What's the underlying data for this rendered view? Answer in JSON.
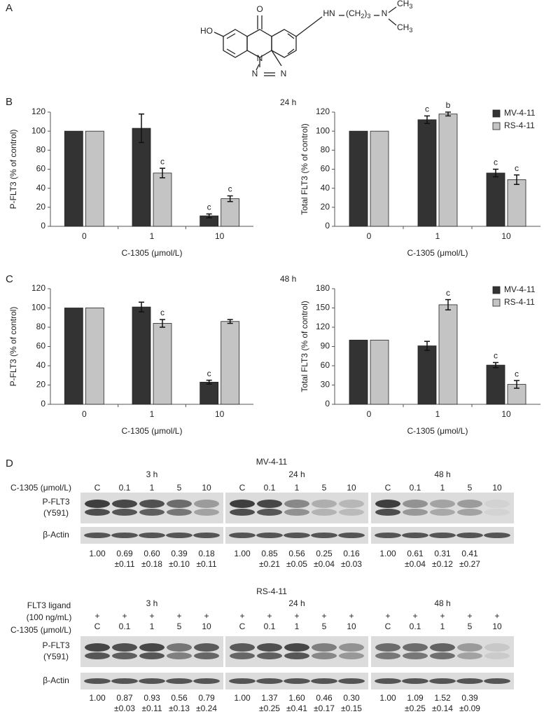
{
  "panels": [
    "A",
    "B",
    "C",
    "D"
  ],
  "structure": {
    "oxo": "O",
    "hydroxy": "HO",
    "amino": "HN",
    "chain": [
      "(CH",
      "2",
      ")",
      "3"
    ],
    "dimethylamino": "N",
    "methyl_top": [
      "CH",
      "3"
    ],
    "methyl_bottom": [
      "CH",
      "3"
    ],
    "triazole": [
      "N",
      "N",
      "N",
      "N"
    ]
  },
  "chart_data": [
    {
      "type": "bar",
      "ylabel": "P-FLT3 (% of control)",
      "xlabel": "C-1305 (μmol/L)",
      "categories": [
        "0",
        "1",
        "10"
      ],
      "ylim": [
        0,
        120
      ],
      "yticks": [
        0,
        20,
        40,
        60,
        80,
        100,
        120
      ],
      "series": [
        {
          "color": "#333333",
          "values": [
            100,
            103,
            11
          ],
          "errors": [
            0,
            15,
            2
          ],
          "labels": [
            null,
            null,
            "c"
          ]
        },
        {
          "color": "#c4c4c4",
          "values": [
            100,
            56,
            29
          ],
          "errors": [
            0,
            5,
            3
          ],
          "labels": [
            null,
            "c",
            "c"
          ]
        }
      ]
    },
    {
      "type": "bar",
      "title": "24 h",
      "ylabel": "Total FLT3 (% of control)",
      "xlabel": "C-1305 (μmol/L)",
      "categories": [
        "0",
        "1",
        "10"
      ],
      "ylim": [
        0,
        120
      ],
      "yticks": [
        0,
        20,
        40,
        60,
        80,
        100,
        120
      ],
      "legend": "upper right",
      "series": [
        {
          "name": "MV-4-11",
          "color": "#333333",
          "values": [
            100,
            112,
            56
          ],
          "errors": [
            0,
            4,
            4
          ],
          "labels": [
            null,
            "c",
            "c"
          ]
        },
        {
          "name": "RS-4-11",
          "color": "#c4c4c4",
          "values": [
            100,
            118,
            49
          ],
          "errors": [
            0,
            2,
            5
          ],
          "labels": [
            null,
            "b",
            "c"
          ]
        }
      ]
    },
    {
      "type": "bar",
      "ylabel": "P-FLT3 (% of control)",
      "xlabel": "C-1305 (μmol/L)",
      "categories": [
        "0",
        "1",
        "10"
      ],
      "ylim": [
        0,
        120
      ],
      "yticks": [
        0,
        20,
        40,
        60,
        80,
        100,
        120
      ],
      "series": [
        {
          "color": "#333333",
          "values": [
            100,
            101,
            23
          ],
          "errors": [
            0,
            5,
            2
          ],
          "labels": [
            null,
            null,
            "c"
          ]
        },
        {
          "color": "#c4c4c4",
          "values": [
            100,
            84,
            86
          ],
          "errors": [
            0,
            4,
            2
          ],
          "labels": [
            null,
            "c",
            null
          ]
        }
      ]
    },
    {
      "type": "bar",
      "title": "48 h",
      "ylabel": "Total FLT3 (% of control)",
      "xlabel": "C-1305 (μmol/L)",
      "categories": [
        "0",
        "1",
        "10"
      ],
      "ylim": [
        0,
        180
      ],
      "yticks": [
        0,
        30,
        60,
        90,
        120,
        150,
        180
      ],
      "legend": "upper right",
      "series": [
        {
          "name": "MV-4-11",
          "color": "#333333",
          "values": [
            100,
            91,
            61
          ],
          "errors": [
            0,
            7,
            4
          ],
          "labels": [
            null,
            null,
            "c"
          ]
        },
        {
          "name": "RS-4-11",
          "color": "#c4c4c4",
          "values": [
            100,
            155,
            31
          ],
          "errors": [
            0,
            8,
            6
          ],
          "labels": [
            null,
            "c",
            "c"
          ]
        }
      ]
    }
  ],
  "blots": [
    {
      "cell_line": "MV-4-11",
      "treatment_label": "C-1305 (μmol/L)",
      "target_label": [
        "P-FLT3",
        "(Y591)"
      ],
      "loading_label": "β-Actin",
      "groups": [
        {
          "time": "3 h",
          "lanes": [
            "C",
            "0.1",
            "1",
            "5",
            "10"
          ],
          "means": [
            "1.00",
            "0.69",
            "0.60",
            "0.39",
            "0.18"
          ],
          "sds": [
            null,
            "±0.11",
            "±0.18",
            "±0.10",
            "±0.11"
          ]
        },
        {
          "time": "24 h",
          "lanes": [
            "C",
            "0.1",
            "1",
            "5",
            "10"
          ],
          "means": [
            "1.00",
            "0.85",
            "0.56",
            "0.25",
            "0.16"
          ],
          "sds": [
            null,
            "±0.21",
            "±0.05",
            "±0.04",
            "±0.03"
          ]
        },
        {
          "time": "48 h",
          "lanes": [
            "C",
            "0.1",
            "1",
            "5",
            "10"
          ],
          "means": [
            "1.00",
            "0.61",
            "0.31",
            "0.41"
          ],
          "sds": [
            null,
            "±0.04",
            "±0.12",
            "±0.27"
          ]
        }
      ]
    },
    {
      "cell_line": "RS-4-11",
      "ligand_label": [
        "FLT3 ligand",
        "(100 ng/mL)"
      ],
      "treatment_label": "C-1305 (μmol/L)",
      "target_label": [
        "P-FLT3",
        "(Y591)"
      ],
      "loading_label": "β-Actin",
      "groups": [
        {
          "time": "3 h",
          "ligand": [
            "+",
            "+",
            "+",
            "+",
            "+"
          ],
          "lanes": [
            "C",
            "0.1",
            "1",
            "5",
            "10"
          ],
          "means": [
            "1.00",
            "0.87",
            "0.93",
            "0.56",
            "0.79"
          ],
          "sds": [
            null,
            "±0.03",
            "±0.11",
            "±0.13",
            "±0.24"
          ]
        },
        {
          "time": "24 h",
          "ligand": [
            "+",
            "+",
            "+",
            "+",
            "+"
          ],
          "lanes": [
            "C",
            "0.1",
            "1",
            "5",
            "10"
          ],
          "means": [
            "1.00",
            "1.37",
            "1.60",
            "0.46",
            "0.30"
          ],
          "sds": [
            null,
            "±0.25",
            "±0.41",
            "±0.17",
            "±0.15"
          ]
        },
        {
          "time": "48 h",
          "ligand": [
            "+",
            "+",
            "+",
            "+",
            "+"
          ],
          "lanes": [
            "C",
            "0.1",
            "1",
            "5",
            "10"
          ],
          "means": [
            "1.00",
            "1.09",
            "1.52",
            "0.39"
          ],
          "sds": [
            null,
            "±0.25",
            "±0.14",
            "±0.09"
          ]
        }
      ]
    }
  ]
}
